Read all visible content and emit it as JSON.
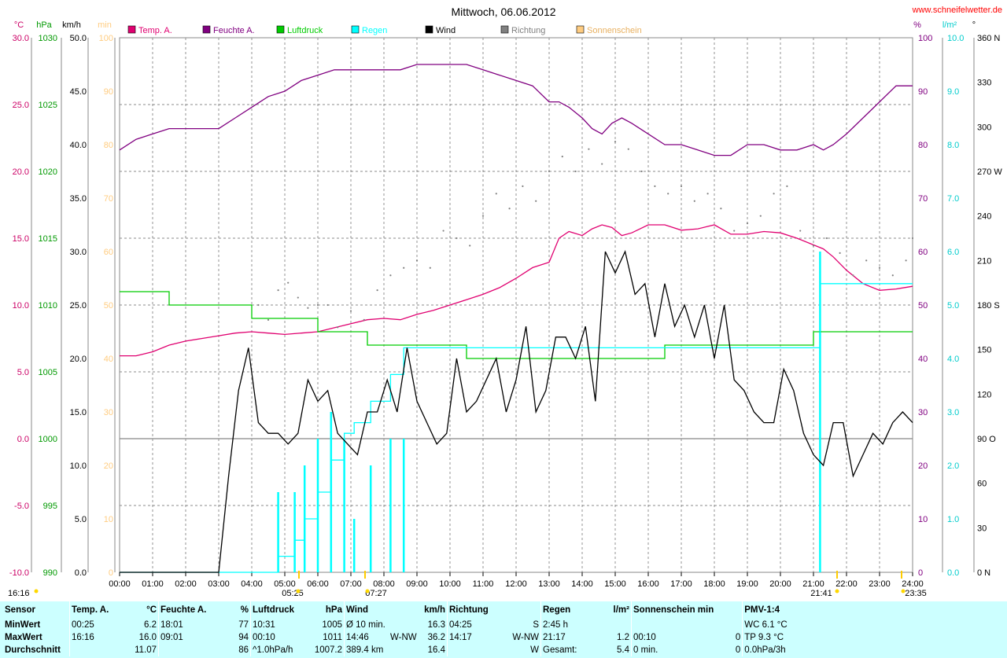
{
  "header": {
    "title": "Mittwoch, 06.06.2012",
    "website": "www.schneifelwetter.de"
  },
  "legend": [
    {
      "label": "Temp. A.",
      "color": "#e00070"
    },
    {
      "label": "Feuchte A.",
      "color": "#800080"
    },
    {
      "label": "Luftdruck",
      "color": "#00cc00"
    },
    {
      "label": "Regen",
      "color": "#00ffff"
    },
    {
      "label": "Wind",
      "color": "#000000"
    },
    {
      "label": "Richtung",
      "color": "#808080"
    },
    {
      "label": "Sonnenschein",
      "color": "#ffcc80"
    }
  ],
  "axes": {
    "left_units": [
      {
        "label": "°C",
        "color": "#cc0066"
      },
      {
        "label": "hPa",
        "color": "#009900"
      },
      {
        "label": "km/h",
        "color": "#000000"
      },
      {
        "label": "min",
        "color": "#ffcc80"
      }
    ],
    "right_units": [
      {
        "label": "%",
        "color": "#800080"
      },
      {
        "label": "l/m²",
        "color": "#00cccc"
      },
      {
        "label": "°",
        "color": "#000000"
      }
    ],
    "temp_ticks": [
      "30.0",
      "25.0",
      "20.0",
      "15.0",
      "10.0",
      "5.0",
      "0.0",
      "-5.0",
      "-10.0"
    ],
    "pressure_ticks": [
      "1030",
      "1025",
      "1020",
      "1015",
      "1010",
      "1005",
      "1000",
      "995",
      "990"
    ],
    "wind_ticks": [
      "50.0",
      "45.0",
      "40.0",
      "35.0",
      "30.0",
      "25.0",
      "20.0",
      "15.0",
      "10.0",
      "5.0",
      "0.0"
    ],
    "sun_ticks": [
      "100",
      "90",
      "80",
      "70",
      "60",
      "50",
      "40",
      "30",
      "20",
      "10",
      "0"
    ],
    "humidity_ticks": [
      "100",
      "90",
      "80",
      "70",
      "60",
      "50",
      "40",
      "30",
      "20",
      "10",
      "0"
    ],
    "rain_ticks": [
      "10.0",
      "9.0",
      "8.0",
      "7.0",
      "6.0",
      "5.0",
      "4.0",
      "3.0",
      "2.0",
      "1.0",
      "0.0"
    ],
    "direction_ticks": [
      "360 N",
      "330",
      "300",
      "270 W",
      "240",
      "210",
      "180 S",
      "150",
      "120",
      "90 O",
      "60",
      "30",
      "0 N"
    ],
    "time_ticks": [
      "00:00",
      "01:00",
      "02:00",
      "03:00",
      "04:00",
      "05:00",
      "06:00",
      "07:00",
      "08:00",
      "09:00",
      "10:00",
      "11:00",
      "12:00",
      "13:00",
      "14:00",
      "15:00",
      "16:00",
      "17:00",
      "18:00",
      "19:00",
      "20:00",
      "21:00",
      "22:00",
      "23:00",
      "24:00"
    ],
    "annotations": [
      "16:16",
      "05:25",
      "07:27",
      "21:41",
      "23:35"
    ]
  },
  "chart_data": {
    "type": "line",
    "x_unit": "hours",
    "series": [
      {
        "name": "Temp. A.",
        "axis": "°C",
        "color": "#e00070",
        "x": [
          0,
          0.5,
          1,
          1.5,
          2,
          2.5,
          3,
          3.5,
          4,
          4.5,
          5,
          5.5,
          6,
          6.5,
          7,
          7.5,
          8,
          8.5,
          9,
          9.5,
          10,
          10.5,
          11,
          11.5,
          12,
          12.5,
          13,
          13.3,
          13.6,
          14,
          14.3,
          14.6,
          14.9,
          15.2,
          15.5,
          16,
          16.5,
          17,
          17.5,
          18,
          18.5,
          19,
          19.5,
          20,
          20.5,
          21,
          21.3,
          21.6,
          22,
          22.5,
          23,
          23.5,
          24
        ],
        "y": [
          6.2,
          6.2,
          6.5,
          7,
          7.3,
          7.5,
          7.7,
          7.9,
          8,
          7.9,
          7.8,
          7.9,
          8,
          8.3,
          8.6,
          8.9,
          9,
          8.9,
          9.3,
          9.6,
          10,
          10.4,
          10.8,
          11.3,
          12,
          12.8,
          13.2,
          15,
          15.5,
          15.2,
          15.7,
          16.0,
          15.8,
          15.2,
          15.4,
          16.0,
          16.0,
          15.6,
          15.7,
          16.0,
          15.3,
          15.3,
          15.5,
          15.4,
          15,
          14.5,
          14.2,
          13.6,
          12.6,
          11.6,
          11.1,
          11.2,
          11.4
        ]
      },
      {
        "name": "Feuchte A.",
        "axis": "%",
        "color": "#800080",
        "x": [
          0,
          0.5,
          1,
          1.5,
          2,
          2.5,
          3,
          3.5,
          4,
          4.5,
          5,
          5.5,
          6,
          6.5,
          7,
          7.5,
          8,
          8.5,
          9,
          9.5,
          10,
          10.5,
          11,
          11.5,
          12,
          12.5,
          13,
          13.3,
          13.6,
          14,
          14.3,
          14.6,
          14.9,
          15.2,
          15.5,
          16,
          16.5,
          17,
          17.5,
          18,
          18.5,
          19,
          19.5,
          20,
          20.5,
          21,
          21.3,
          21.6,
          22,
          22.5,
          23,
          23.5,
          24
        ],
        "y": [
          79,
          81,
          82,
          83,
          83,
          83,
          83,
          85,
          87,
          89,
          90,
          92,
          93,
          94,
          94,
          94,
          94,
          94,
          95,
          95,
          95,
          95,
          94,
          93,
          92,
          91,
          88,
          88,
          87,
          85,
          83,
          82,
          84,
          85,
          84,
          82,
          80,
          80,
          79,
          78,
          78,
          80,
          80,
          79,
          79,
          80,
          79,
          80,
          82,
          85,
          88,
          91,
          91
        ]
      },
      {
        "name": "Luftdruck",
        "axis": "hPa",
        "color": "#00cc00",
        "x": [
          0,
          0.5,
          1,
          1.5,
          2,
          2.5,
          3,
          3.5,
          4,
          4.5,
          5,
          5.5,
          6,
          6.5,
          7,
          7.5,
          8,
          8.5,
          9,
          9.5,
          10,
          10.5,
          11,
          11.5,
          12,
          12.5,
          13,
          13.5,
          14,
          14.5,
          15,
          15.5,
          16,
          16.5,
          17,
          17.5,
          18,
          18.5,
          19,
          19.5,
          20,
          20.5,
          21,
          21.5,
          22,
          22.5,
          23,
          23.5,
          24
        ],
        "y": [
          1011,
          1011,
          1011,
          1010,
          1010,
          1010,
          1010,
          1010,
          1009,
          1009,
          1009,
          1009,
          1008,
          1008,
          1008,
          1007,
          1007,
          1007,
          1007,
          1007,
          1007,
          1006,
          1006,
          1006,
          1006,
          1006,
          1006,
          1006,
          1006,
          1006,
          1006,
          1006,
          1006,
          1007,
          1007,
          1007,
          1007,
          1007,
          1007,
          1007,
          1007,
          1007,
          1008,
          1008,
          1008,
          1008,
          1008,
          1008,
          1008
        ]
      },
      {
        "name": "Regen",
        "axis": "l/m²",
        "color": "#00ffff",
        "x": [
          0,
          4.5,
          4.8,
          5,
          5.3,
          5.6,
          6,
          6.4,
          6.8,
          7.1,
          7.6,
          8.2,
          8.6,
          9,
          12,
          16,
          21,
          21.2,
          21.6,
          22,
          24
        ],
        "y": [
          0,
          0,
          0.3,
          0.3,
          0.6,
          1.0,
          1.5,
          2.1,
          2.6,
          2.8,
          3.2,
          3.7,
          4.2,
          4.2,
          4.2,
          4.2,
          4.2,
          5.4,
          5.4,
          5.4,
          5.4
        ]
      },
      {
        "name": "Wind",
        "axis": "km/h",
        "color": "#000000",
        "x": [
          0,
          2.3,
          2.5,
          3,
          3.3,
          3.6,
          3.9,
          4.2,
          4.5,
          4.8,
          5.1,
          5.4,
          5.7,
          6,
          6.3,
          6.6,
          6.9,
          7.2,
          7.5,
          7.8,
          8.1,
          8.4,
          8.7,
          9,
          9.3,
          9.6,
          9.9,
          10.2,
          10.5,
          10.8,
          11.1,
          11.4,
          11.7,
          12,
          12.3,
          12.6,
          12.9,
          13.2,
          13.5,
          13.8,
          14.1,
          14.4,
          14.7,
          15,
          15.3,
          15.6,
          15.9,
          16.2,
          16.5,
          16.8,
          17.1,
          17.4,
          17.7,
          18,
          18.3,
          18.6,
          18.9,
          19.2,
          19.5,
          19.8,
          20.1,
          20.4,
          20.7,
          21,
          21.3,
          21.6,
          21.9,
          22.2,
          22.5,
          22.8,
          23.1,
          23.4,
          23.7,
          24
        ],
        "y": [
          0,
          0,
          0,
          0,
          9,
          17,
          21,
          14,
          13,
          13,
          12,
          13,
          18,
          16,
          17,
          13,
          12,
          11,
          15,
          15,
          18,
          15,
          21,
          16,
          14,
          12,
          13,
          20,
          15,
          16,
          18,
          20,
          15,
          18,
          23,
          15,
          17,
          22,
          22,
          20,
          23,
          16,
          30,
          28,
          30,
          26,
          27,
          22,
          27,
          23,
          25,
          22,
          25,
          20,
          25,
          18,
          17,
          15,
          14,
          14,
          19,
          17,
          13,
          11,
          10,
          14,
          14,
          9,
          11,
          13,
          12,
          14,
          15,
          14
        ]
      },
      {
        "name": "Richtung",
        "axis": "°",
        "color": "#808080",
        "type": "scatter",
        "x": [
          4.2,
          4.5,
          4.8,
          5.1,
          5.4,
          5.7,
          6,
          6.3,
          6.6,
          7,
          7.4,
          7.8,
          8.2,
          8.6,
          9,
          9.4,
          9.8,
          10.2,
          10.6,
          11,
          11.4,
          11.8,
          12.2,
          12.6,
          13,
          13.4,
          13.8,
          14.2,
          14.6,
          15,
          15.4,
          15.8,
          16.2,
          16.6,
          17,
          17.4,
          17.8,
          18.2,
          18.6,
          19,
          19.4,
          19.8,
          20.2,
          20.6,
          21,
          21.4,
          21.8,
          22.2,
          22.6,
          23,
          23.4,
          23.8,
          24
        ],
        "y": [
          180,
          170,
          190,
          195,
          185,
          178,
          180,
          180,
          165,
          176,
          170,
          190,
          200,
          205,
          210,
          205,
          230,
          225,
          220,
          240,
          255,
          245,
          260,
          250,
          270,
          280,
          270,
          285,
          275,
          290,
          285,
          270,
          260,
          255,
          260,
          250,
          255,
          245,
          230,
          235,
          240,
          255,
          260,
          230,
          220,
          225,
          215,
          200,
          210,
          205,
          200,
          210,
          225
        ]
      },
      {
        "name": "Sonnenschein",
        "axis": "min",
        "color": "#ffcc80",
        "values": []
      }
    ],
    "scales": {
      "temp": [
        -10,
        30
      ],
      "pressure": [
        990,
        1030
      ],
      "wind": [
        0,
        50
      ],
      "sun": [
        0,
        100
      ],
      "humidity": [
        0,
        100
      ],
      "rain": [
        0,
        10
      ],
      "direction": [
        0,
        360
      ]
    }
  },
  "stats": {
    "columns": [
      {
        "head": "Sensor",
        "unit": ""
      },
      {
        "head": "Temp. A.",
        "unit": "°C"
      },
      {
        "head": "Feuchte A.",
        "unit": "%"
      },
      {
        "head": "Luftdruck",
        "unit": "hPa"
      },
      {
        "head": "Wind",
        "unit": "km/h"
      },
      {
        "head": "Richtung",
        "unit": ""
      },
      {
        "head": "Regen",
        "unit": "l/m²"
      },
      {
        "head": "Sonnenschein min",
        "unit": ""
      },
      {
        "head": "PMV-1:4",
        "unit": ""
      }
    ],
    "rows": [
      {
        "label": "MinWert",
        "temp": {
          "t": "00:25",
          "v": "6.2"
        },
        "hum": {
          "t": "18:01",
          "v": "77"
        },
        "press": {
          "t": "10:31",
          "v": "1005"
        },
        "wind": {
          "t": "Ø 10 min.",
          "d": "",
          "v": "16.3"
        },
        "dir": {
          "t": "04:25",
          "v": "S"
        },
        "rain": {
          "t": "2:45 h",
          "v": ""
        },
        "sun": {
          "t": "",
          "v": ""
        },
        "pmv": "WC 6.1 °C"
      },
      {
        "label": "MaxWert",
        "temp": {
          "t": "16:16",
          "v": "16.0"
        },
        "hum": {
          "t": "09:01",
          "v": "94"
        },
        "press": {
          "t": "00:10",
          "v": "1011"
        },
        "wind": {
          "t": "14:46",
          "d": "W-NW",
          "v": "36.2"
        },
        "dir": {
          "t": "14:17",
          "v": "W-NW"
        },
        "rain": {
          "t": "21:17",
          "v": "1.2"
        },
        "sun": {
          "t": "00:10",
          "v": "0"
        },
        "pmv": "TP 9.3 °C"
      },
      {
        "label": "Durchschnitt",
        "temp": {
          "t": "",
          "v": "11.07"
        },
        "hum": {
          "t": "",
          "v": "86"
        },
        "press": {
          "t": "^1.0hPa/h",
          "v": "1007.2"
        },
        "wind": {
          "t": "389.4 km",
          "d": "",
          "v": "16.4"
        },
        "dir": {
          "t": "",
          "v": "W"
        },
        "rain": {
          "t": "Gesamt:",
          "v": "5.4"
        },
        "sun": {
          "t": "0 min.",
          "v": "0"
        },
        "pmv": "0.0hPa/3h"
      }
    ]
  }
}
